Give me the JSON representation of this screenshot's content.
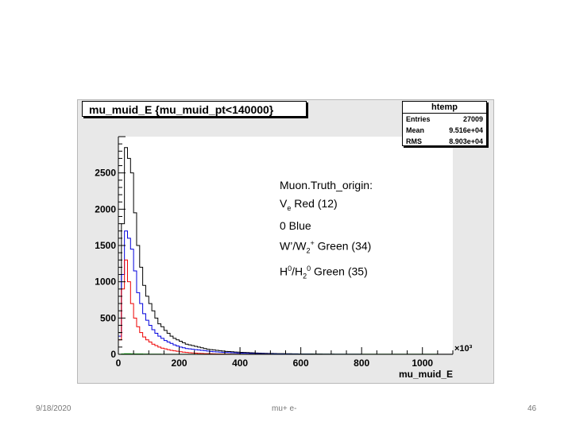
{
  "chart_data": {
    "type": "histogram",
    "title": "mu_muid_E {mu_muid_pt<140000}",
    "xlabel": "mu_muid_E",
    "x_multiplier": "×10³",
    "xlim": [
      0,
      1100
    ],
    "ylim": [
      0,
      3000
    ],
    "x_ticks": [
      0,
      200,
      400,
      600,
      800,
      1000
    ],
    "y_ticks": [
      0,
      500,
      1000,
      1500,
      2000,
      2500
    ],
    "grid": false,
    "bin_width": 10,
    "stats": {
      "header": "htemp",
      "entries_label": "Entries",
      "entries": "27009",
      "mean_label": "Mean",
      "mean": "9.516e+04",
      "rms_label": "RMS",
      "rms": "8.903e+04"
    },
    "series": [
      {
        "color": "#000000",
        "values": [
          300,
          1800,
          2850,
          2700,
          2500,
          1950,
          1500,
          1200,
          950,
          800,
          700,
          600,
          500,
          420,
          380,
          330,
          290,
          250,
          220,
          200,
          180,
          160,
          140,
          130,
          120,
          110,
          100,
          90,
          80,
          70,
          65,
          60,
          55,
          50,
          45,
          40,
          38,
          35,
          32,
          30,
          28,
          26,
          24,
          22,
          20,
          18,
          17,
          15,
          14,
          13,
          12,
          11,
          10,
          9,
          9,
          8,
          8,
          7,
          7,
          6,
          6,
          5,
          5,
          5,
          4,
          4,
          4,
          3,
          3,
          3,
          3,
          2,
          2,
          2,
          2,
          2,
          2,
          2,
          2,
          2,
          2,
          2,
          2,
          1,
          1,
          1,
          1,
          1,
          1,
          1,
          1,
          1,
          1,
          1,
          1,
          1,
          1,
          1,
          1,
          1,
          1,
          1,
          1,
          1,
          1,
          1,
          1,
          1,
          1,
          1
        ]
      },
      {
        "color": "#0000dd",
        "values": [
          250,
          1100,
          1700,
          1600,
          1450,
          1150,
          850,
          700,
          560,
          470,
          400,
          340,
          290,
          250,
          220,
          190,
          170,
          150,
          130,
          115,
          100,
          90,
          80,
          75,
          70,
          65,
          60,
          55,
          50,
          45,
          40,
          36,
          33,
          30,
          28,
          26,
          24,
          22,
          20,
          18,
          17,
          15,
          14,
          13,
          12,
          11,
          10,
          9,
          8,
          8,
          7,
          7,
          6,
          6,
          5,
          5,
          4,
          4,
          4,
          3,
          3,
          3,
          3,
          2,
          2,
          2,
          2,
          2,
          2,
          2,
          1,
          1,
          1,
          1,
          1,
          1,
          1,
          1,
          1,
          1
        ]
      },
      {
        "color": "#ee0000",
        "values": [
          200,
          900,
          1300,
          1000,
          700,
          500,
          380,
          300,
          240,
          200,
          170,
          140,
          120,
          100,
          85,
          75,
          65,
          55,
          48,
          42,
          36,
          30,
          26,
          22,
          19,
          16,
          14,
          12,
          10,
          9,
          8,
          7,
          6,
          5,
          5,
          4,
          4,
          3,
          3,
          3,
          2,
          2,
          2,
          2,
          1,
          1,
          1,
          1,
          1,
          1
        ]
      },
      {
        "color": "#00aa00",
        "values": [
          2,
          5,
          8,
          8,
          7,
          6,
          5,
          5,
          4,
          4,
          3,
          3,
          3,
          3,
          2,
          2,
          2,
          2,
          2,
          2,
          2,
          2,
          2,
          2,
          2,
          2,
          2,
          2,
          2,
          2,
          2,
          2,
          2,
          2,
          2,
          2,
          2,
          2,
          2,
          2,
          2,
          2,
          2,
          2,
          2,
          2,
          2,
          2,
          2,
          2,
          2,
          2,
          2,
          2,
          2,
          2,
          2,
          2,
          2,
          2,
          2,
          2,
          2,
          2,
          2,
          2,
          2,
          2,
          2,
          2,
          2,
          2,
          2,
          2,
          2,
          2,
          2,
          2,
          2,
          2,
          2,
          2,
          2,
          2,
          2,
          2,
          2,
          2,
          2,
          2,
          2,
          2,
          2,
          2,
          2,
          2,
          2,
          2,
          2,
          2,
          2,
          2,
          2,
          2,
          2
        ]
      }
    ]
  },
  "annotation": {
    "line1": "Muon.Truth_origin:",
    "line2_pre": "V",
    "line2_sub": "e",
    "line2_post": " Red (12)",
    "line3": "0 Blue",
    "line4_pre": "W’/W",
    "line4_sub": "2",
    "line4_sup": "+",
    "line4_post": " Green (34)",
    "line5_a": "H",
    "line5_sup1": "0",
    "line5_b": "/H",
    "line5_sub": "2",
    "line5_sup2": "0",
    "line5_post": " Green (35)"
  },
  "footer": {
    "date": "9/18/2020",
    "center": "mu+ e-",
    "page": "46"
  }
}
